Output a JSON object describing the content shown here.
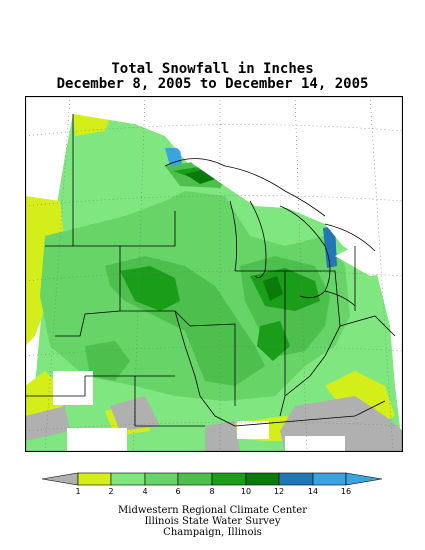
{
  "title": {
    "line1": "Total Snowfall in Inches",
    "line2": "December 8, 2005 to December 14, 2005"
  },
  "legend": {
    "ticks": [
      "1",
      "2",
      "4",
      "6",
      "8",
      "10",
      "12",
      "14",
      "16"
    ],
    "colors": {
      "below": "#b0b0b0",
      "1_2": "#d4ee1a",
      "2_4": "#80e680",
      "4_6": "#66d466",
      "6_8": "#4cbf4c",
      "8_10": "#1a9e1a",
      "10_12": "#0a7a0a",
      "12_14": "#1f78b4",
      "14_16": "#3aa4e0",
      "above": "#3aa4e0"
    }
  },
  "credits": {
    "line1": "Midwestern Regional Climate Center",
    "line2": "Illinois State Water Survey",
    "line3": "Champaign, Illinois"
  }
}
